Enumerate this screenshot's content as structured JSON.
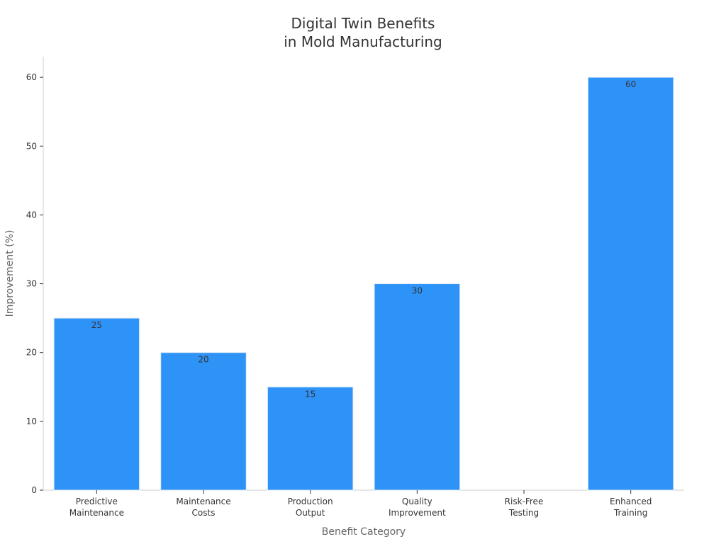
{
  "chart_data": {
    "type": "bar",
    "title_lines": [
      "Digital Twin Benefits",
      "in Mold Manufacturing"
    ],
    "xlabel": "Benefit Category",
    "ylabel": "Improvement (%)",
    "categories": [
      [
        "Predictive",
        "Maintenance"
      ],
      [
        "Maintenance",
        "Costs"
      ],
      [
        "Production",
        "Output"
      ],
      [
        "Quality",
        "Improvement"
      ],
      [
        "Risk-Free",
        "Testing"
      ],
      [
        "Enhanced",
        "Training"
      ]
    ],
    "values": [
      25,
      20,
      15,
      30,
      0,
      60
    ],
    "data_labels": [
      "25",
      "20",
      "15",
      "30",
      "",
      "60"
    ],
    "y_ticks": [
      0,
      10,
      20,
      30,
      40,
      50,
      60
    ],
    "ylim": [
      0,
      63
    ],
    "grid": false,
    "bar_color": "#2e93f7",
    "bar_edge_color": "#dbe9f7"
  }
}
